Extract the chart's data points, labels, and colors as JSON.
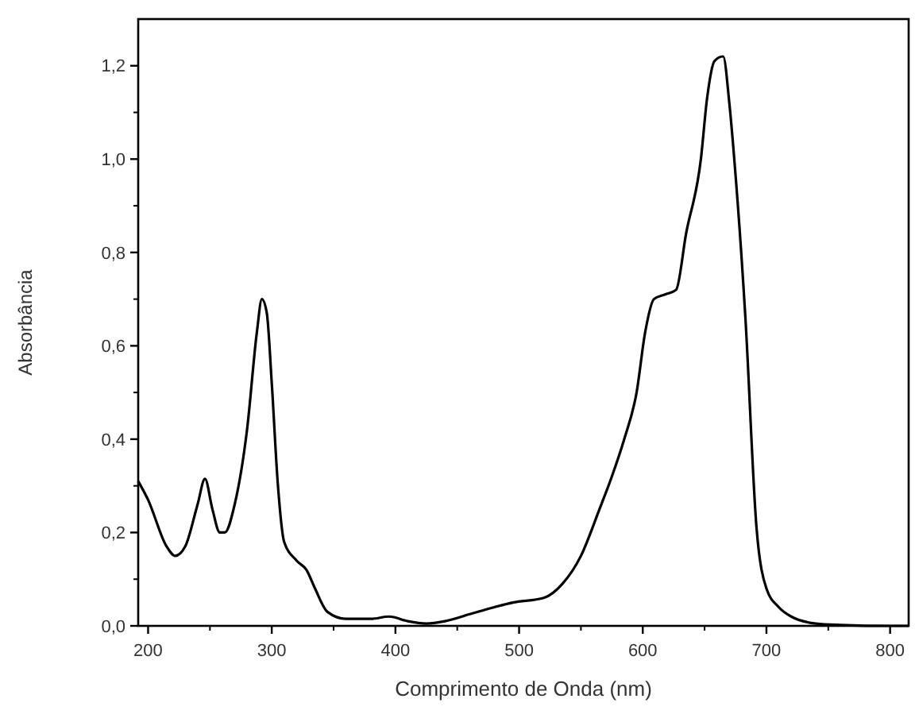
{
  "chart_data": {
    "type": "line",
    "xlabel": "Comprimento de Onda (nm)",
    "ylabel": "Absorbância",
    "x": [
      192,
      200,
      215,
      222,
      230,
      240,
      246,
      252,
      258,
      262,
      270,
      280,
      288,
      292,
      296,
      300,
      305,
      310,
      320,
      328,
      335,
      345,
      360,
      380,
      395,
      410,
      425,
      440,
      460,
      480,
      495,
      520,
      535,
      550,
      565,
      575,
      585,
      595,
      602,
      609,
      618,
      627,
      635,
      647,
      652,
      658,
      665,
      670,
      674,
      683,
      692,
      700,
      710,
      720,
      740,
      760,
      800,
      815
    ],
    "series": [
      {
        "color": "#000000",
        "values": [
          0.31,
          0.27,
          0.17,
          0.15,
          0.17,
          0.26,
          0.315,
          0.25,
          0.2,
          0.2,
          0.26,
          0.42,
          0.63,
          0.7,
          0.67,
          0.52,
          0.3,
          0.18,
          0.14,
          0.12,
          0.08,
          0.03,
          0.015,
          0.015,
          0.02,
          0.01,
          0.005,
          0.01,
          0.025,
          0.04,
          0.05,
          0.06,
          0.09,
          0.15,
          0.25,
          0.32,
          0.4,
          0.5,
          0.63,
          0.7,
          0.71,
          0.72,
          0.84,
          1.0,
          1.13,
          1.21,
          1.22,
          1.12,
          1.0,
          0.66,
          0.21,
          0.08,
          0.04,
          0.02,
          0.005,
          0.002,
          0,
          0
        ]
      }
    ],
    "xlim": [
      192,
      815
    ],
    "ylim": [
      0,
      1.3
    ],
    "xticks": [
      200,
      300,
      400,
      500,
      600,
      700,
      800
    ],
    "yticks": [
      {
        "value": 0,
        "label": "0,0"
      },
      {
        "value": 0.2,
        "label": "0,2"
      },
      {
        "value": 0.4,
        "label": "0,4"
      },
      {
        "value": 0.6,
        "label": "0,6"
      },
      {
        "value": 0.8,
        "label": "0,8"
      },
      {
        "value": 1.0,
        "label": "1,0"
      },
      {
        "value": 1.2,
        "label": "1,2"
      }
    ],
    "grid": false,
    "marker": "none",
    "line_style": "solid"
  }
}
